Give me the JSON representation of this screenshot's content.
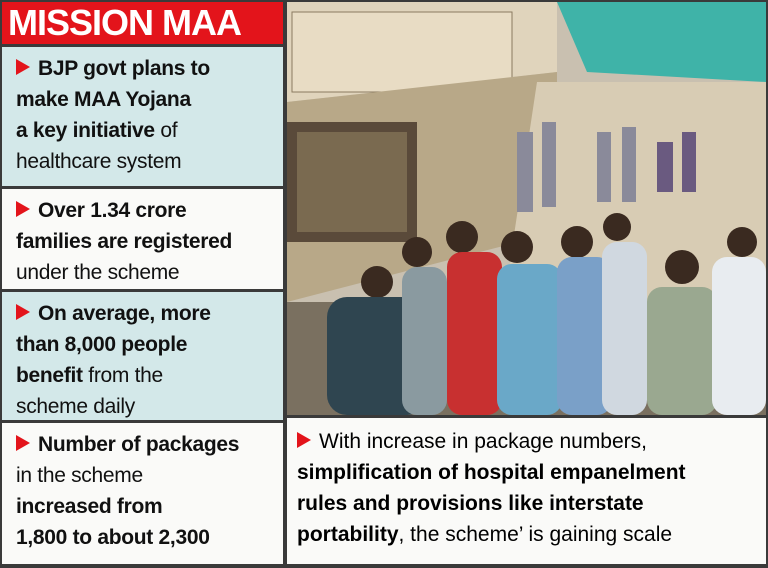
{
  "header": {
    "title": "MISSION MAA"
  },
  "panels": [
    {
      "lines": [
        [
          {
            "text": "BJP govt plans to",
            "bold": true
          }
        ],
        [
          {
            "text": "make MAA Yojana",
            "bold": true
          }
        ],
        [
          {
            "text": "a key initiative",
            "bold": true
          },
          {
            "text": " of",
            "bold": false
          }
        ],
        [
          {
            "text": "healthcare system",
            "bold": false
          }
        ]
      ]
    },
    {
      "lines": [
        [
          {
            "text": "Over 1.34 crore",
            "bold": true
          }
        ],
        [
          {
            "text": "families are registered",
            "bold": true
          }
        ],
        [
          {
            "text": "under the scheme",
            "bold": false
          }
        ]
      ]
    },
    {
      "lines": [
        [
          {
            "text": "On average, more",
            "bold": true
          }
        ],
        [
          {
            "text": "than 8,000 people",
            "bold": true
          }
        ],
        [
          {
            "text": "benefit",
            "bold": true
          },
          {
            "text": " from the",
            "bold": false
          }
        ],
        [
          {
            "text": "scheme daily",
            "bold": false
          }
        ]
      ]
    },
    {
      "lines": [
        [
          {
            "text": "Number of packages",
            "bold": true
          }
        ],
        [
          {
            "text": "in the scheme",
            "bold": false
          }
        ],
        [
          {
            "text": "increased from",
            "bold": true
          }
        ],
        [
          {
            "text": "1,800 to about 2,300",
            "bold": true
          }
        ]
      ]
    }
  ],
  "caption": {
    "lines": [
      [
        {
          "text": "With increase in package numbers,",
          "bold": false
        }
      ],
      [
        {
          "text": "simplification of hospital empanelment",
          "bold": true
        }
      ],
      [
        {
          "text": "rules and provisions like interstate",
          "bold": true
        }
      ],
      [
        {
          "text": "portability",
          "bold": true
        },
        {
          "text": ", the scheme’ is gaining scale",
          "bold": false
        }
      ]
    ]
  }
}
